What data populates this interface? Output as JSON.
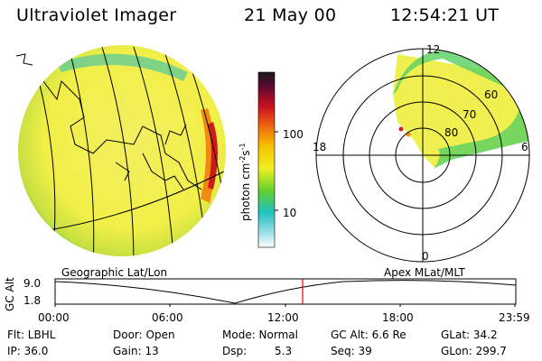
{
  "header": {
    "title": "Ultraviolet Imager",
    "date": "21 May 00",
    "time": "12:54:21 UT"
  },
  "colorbar": {
    "label": "photon cm",
    "label_sup": "-2",
    "label_s": "s",
    "label_sup2": "-1",
    "ticks": [
      "100",
      "10"
    ],
    "colors": {
      "top": "#1a1a1a",
      "red": "#cc1020",
      "orange": "#f5a800",
      "yellow": "#f0f020",
      "green": "#60d030",
      "cyan": "#20c0c0",
      "white": "#ffffff"
    }
  },
  "polar": {
    "lat_labels": [
      "80",
      "70",
      "60"
    ],
    "mlt_labels": [
      "12",
      "18",
      "6",
      "0"
    ]
  },
  "orbit": {
    "ylabel": "GC Alt",
    "y_ticks": [
      "9.0",
      "1.8"
    ],
    "left_title": "Geographic Lat/Lon",
    "right_title": "Apex MLat/MLT",
    "x_ticks": [
      "00:00",
      "06:00",
      "12:00",
      "18:00",
      "23:59"
    ],
    "current_marker_color": "#e00000"
  },
  "info": {
    "flt": "Flt: LBHL",
    "ip": "IP: 36.0",
    "door": "Door: Open",
    "gain": "Gain: 13",
    "mode": "Mode: Normal",
    "dsp_label": "Dsp:",
    "dsp_value": "5.3",
    "gcalt": "GC Alt: 6.6 Re",
    "seq": "Seq: 39",
    "glat": "GLat: 34.2",
    "glon": "GLon: 299.7"
  }
}
